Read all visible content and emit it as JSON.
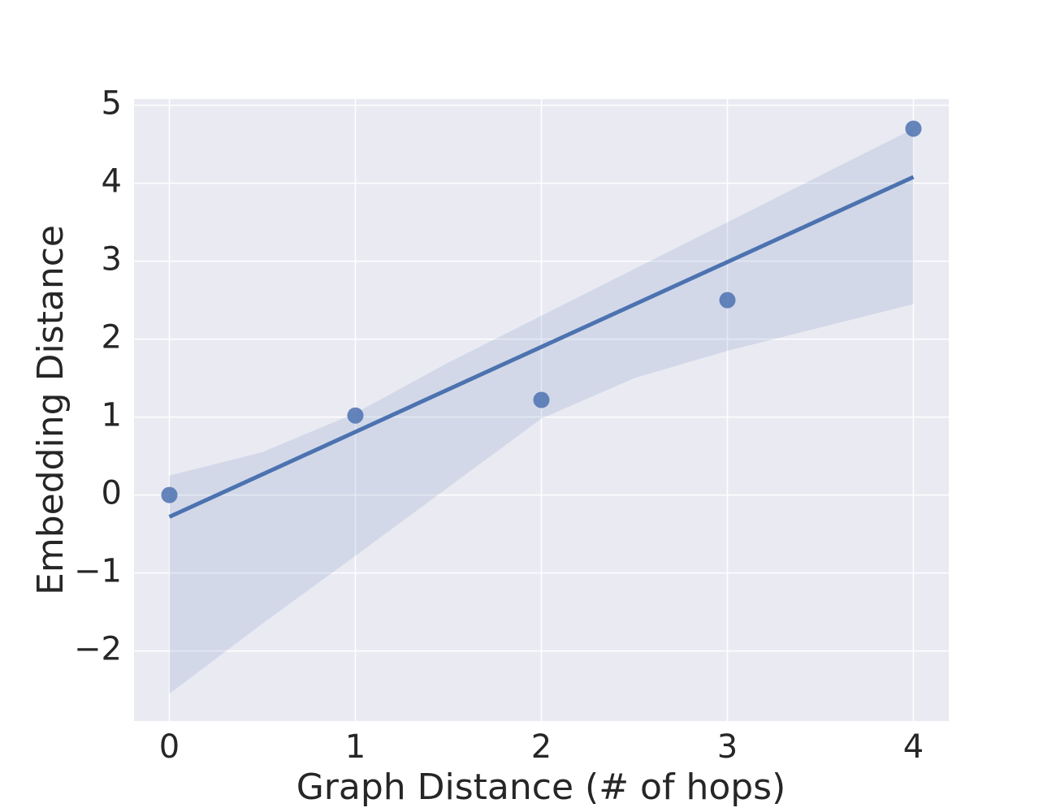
{
  "chart_data": {
    "type": "regplot",
    "xlabel": "Graph Distance (# of hops)",
    "ylabel": "Embedding Distance",
    "x": [
      0,
      1,
      2,
      3,
      4
    ],
    "values": [
      0,
      1.02,
      1.22,
      2.5,
      4.7
    ],
    "color": "#4c72b0",
    "fit": {
      "x": [
        0,
        4
      ],
      "values": [
        -0.28,
        4.08
      ]
    },
    "band": {
      "x": [
        0,
        0.5,
        1,
        1.5,
        2,
        2.5,
        3,
        3.5,
        4
      ],
      "upper": [
        0.25,
        0.55,
        1.05,
        1.7,
        2.3,
        2.9,
        3.5,
        4.1,
        4.7
      ],
      "lower": [
        -2.55,
        -1.65,
        -0.78,
        0.1,
        0.98,
        1.5,
        1.85,
        2.15,
        2.45
      ]
    },
    "xlim": [
      -0.19,
      4.19
    ],
    "ylim": [
      -2.9,
      5.08
    ],
    "xticks": [
      0,
      1,
      2,
      3,
      4
    ],
    "yticks": [
      {
        "value": -2,
        "label": "−2"
      },
      {
        "value": -1,
        "label": "−1"
      },
      0,
      1,
      2,
      3,
      4,
      5
    ],
    "grid": true
  }
}
